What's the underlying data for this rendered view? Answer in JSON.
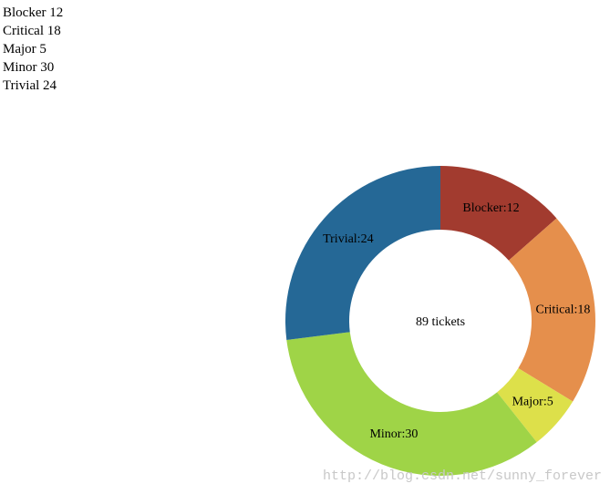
{
  "chart_data": {
    "type": "donut",
    "list_labels": [
      "Blocker 12",
      "Critical 18",
      "Major 5",
      "Minor 30",
      "Trivial 24"
    ],
    "values": [
      12,
      18,
      5,
      30,
      24
    ],
    "value_labels": [
      "Blocker:12",
      "Critical:18",
      "Major:5",
      "Minor:30",
      "Trivial:24"
    ],
    "colors": [
      "#a23b2f",
      "#e58f4c",
      "#dde04a",
      "#9fd447",
      "#256896"
    ],
    "center_label": "89 tickets",
    "watermark": "http://blog.csdn.net/sunny_forever"
  }
}
